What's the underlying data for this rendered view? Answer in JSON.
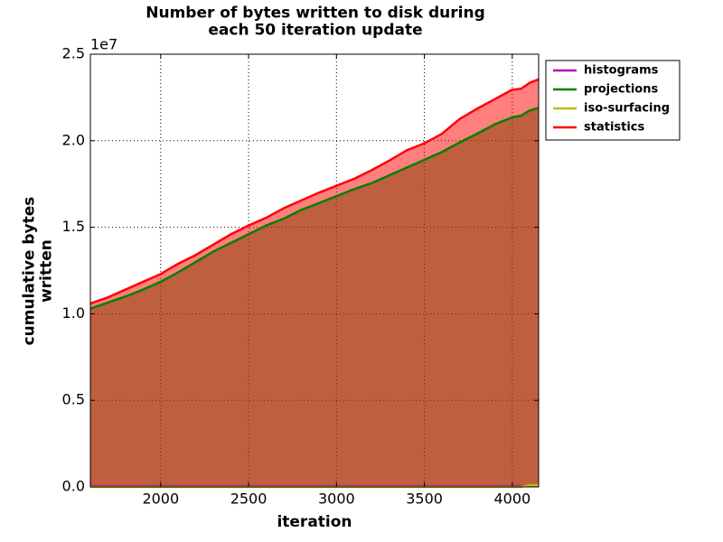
{
  "chart_data": {
    "type": "area",
    "title": "Number of bytes written to disk during\neach 50 iteration update",
    "x_label": "iteration",
    "y_label": "cumulative bytes\nwritten",
    "y_offset_label": "1e7",
    "x": [
      1600,
      1700,
      1800,
      1900,
      2000,
      2100,
      2200,
      2300,
      2400,
      2500,
      2600,
      2700,
      2800,
      2900,
      3000,
      3100,
      3200,
      3300,
      3400,
      3500,
      3600,
      3700,
      3800,
      3900,
      4000,
      4050,
      4100,
      4150
    ],
    "series": [
      {
        "name": "histograms",
        "color": "#bf00bf",
        "values": [
          0.005,
          0.005,
          0.005,
          0.005,
          0.005,
          0.005,
          0.005,
          0.005,
          0.005,
          0.005,
          0.005,
          0.005,
          0.005,
          0.005,
          0.005,
          0.005,
          0.005,
          0.005,
          0.005,
          0.005,
          0.005,
          0.005,
          0.005,
          0.005,
          0.005,
          0.005,
          0.005,
          0.005
        ]
      },
      {
        "name": "projections",
        "color": "#008000",
        "values": [
          1.03,
          1.065,
          1.1,
          1.14,
          1.185,
          1.24,
          1.3,
          1.36,
          1.41,
          1.46,
          1.51,
          1.55,
          1.6,
          1.64,
          1.68,
          1.72,
          1.755,
          1.8,
          1.845,
          1.89,
          1.935,
          1.99,
          2.04,
          2.095,
          2.135,
          2.145,
          2.175,
          2.19
        ]
      },
      {
        "name": "iso-surfacing",
        "color": "#bfbf00",
        "values": [
          0,
          0,
          0,
          0,
          0,
          0,
          0,
          0,
          0,
          0,
          0,
          0,
          0,
          0,
          0,
          0,
          0,
          0,
          0,
          0,
          0,
          0,
          0,
          0,
          0,
          0,
          0.01,
          0.01
        ]
      },
      {
        "name": "statistics",
        "color": "#ff0000",
        "values": [
          1.06,
          1.095,
          1.14,
          1.185,
          1.23,
          1.29,
          1.34,
          1.4,
          1.46,
          1.51,
          1.555,
          1.61,
          1.655,
          1.7,
          1.74,
          1.78,
          1.83,
          1.885,
          1.945,
          1.985,
          2.04,
          2.125,
          2.185,
          2.24,
          2.295,
          2.3,
          2.335,
          2.355
        ]
      }
    ],
    "xlim": [
      1600,
      4150
    ],
    "xticks": [
      2000,
      2500,
      3000,
      3500,
      4000
    ],
    "ylim": [
      0,
      2.5
    ],
    "yticks": [
      {
        "value": 0,
        "label": "0.0"
      },
      0.5,
      {
        "value": 1,
        "label": "1.0"
      },
      1.5,
      {
        "value": 2,
        "label": "2.0"
      },
      2.5
    ],
    "grid": true,
    "legend": "upper right outside"
  }
}
